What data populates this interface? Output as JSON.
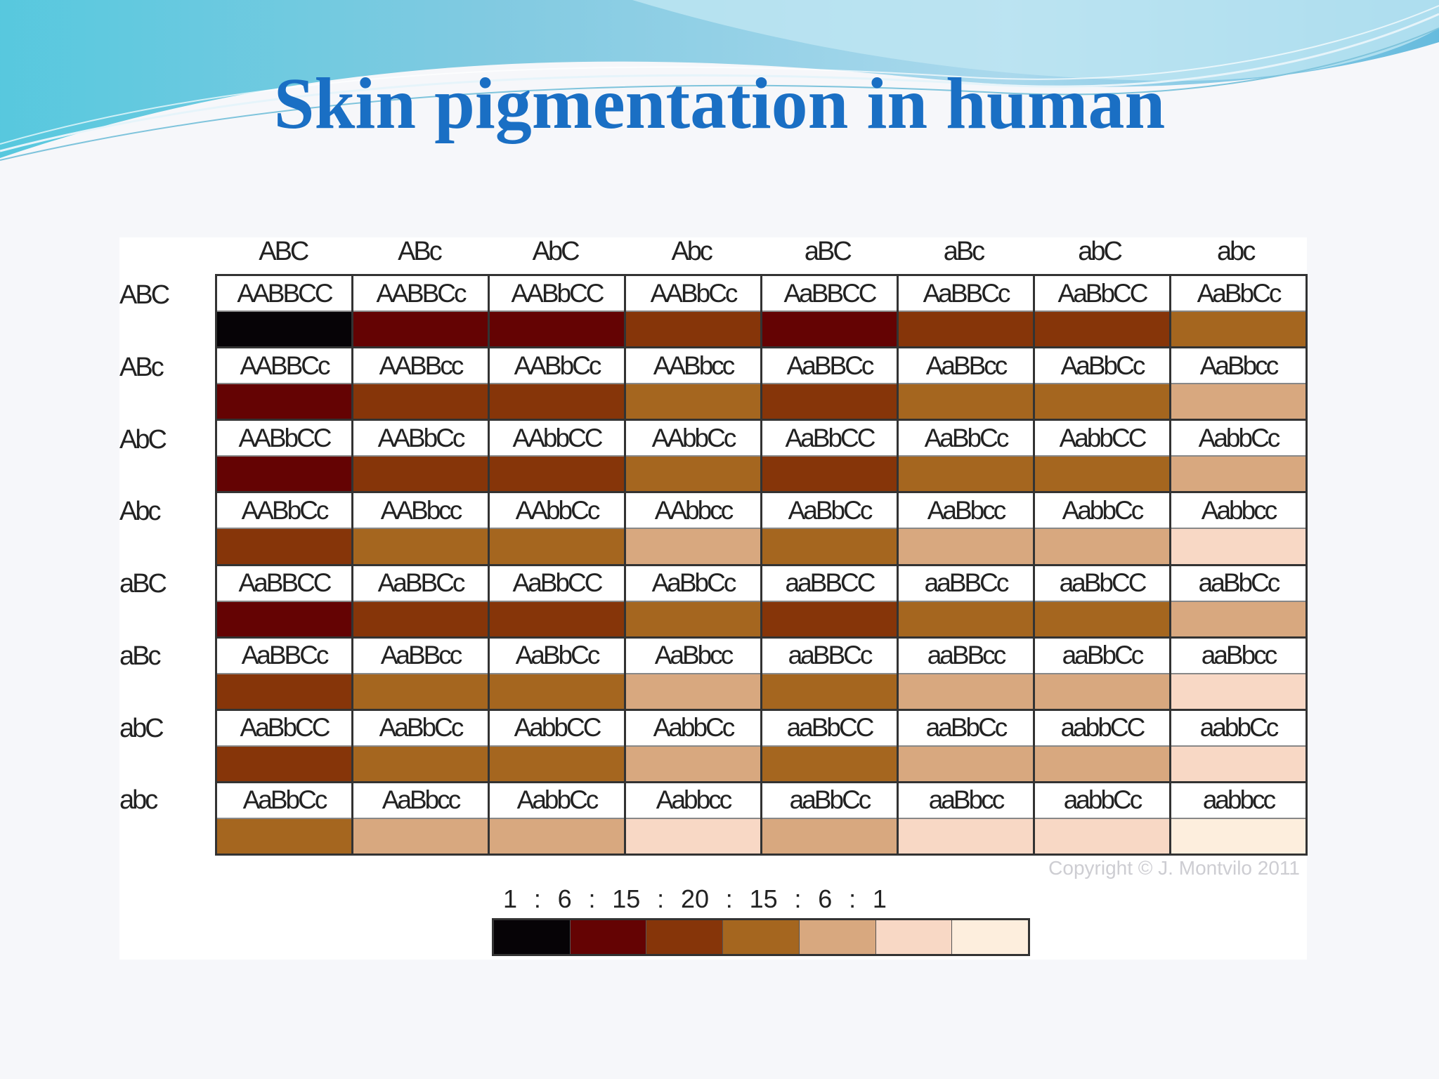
{
  "slide": {
    "title": "Skin pigmentation in human"
  },
  "figure": {
    "column_headers": [
      "ABC",
      "ABc",
      "AbC",
      "Abc",
      "aBC",
      "aBc",
      "abC",
      "abc"
    ],
    "row_headers": [
      "ABC",
      "ABc",
      "AbC",
      "Abc",
      "aBC",
      "aBc",
      "abC",
      "abc"
    ],
    "cells": [
      [
        "AABBCC",
        "AABBCc",
        "AABbCC",
        "AABbCc",
        "AaBBCC",
        "AaBBCc",
        "AaBbCC",
        "AaBbCc"
      ],
      [
        "AABBCc",
        "AABBcc",
        "AABbCc",
        "AABbcc",
        "AaBBCc",
        "AaBBcc",
        "AaBbCc",
        "AaBbcc"
      ],
      [
        "AABbCC",
        "AABbCc",
        "AAbbCC",
        "AAbbCc",
        "AaBbCC",
        "AaBbCc",
        "AabbCC",
        "AabbCc"
      ],
      [
        "AABbCc",
        "AABbcc",
        "AAbbCc",
        "AAbbcc",
        "AaBbCc",
        "AaBbcc",
        "AabbCc",
        "Aabbcc"
      ],
      [
        "AaBBCC",
        "AaBBCc",
        "AaBbCC",
        "AaBbCc",
        "aaBBCC",
        "aaBBCc",
        "aaBbCC",
        "aaBbCc"
      ],
      [
        "AaBBCc",
        "AaBBcc",
        "AaBbCc",
        "AaBbcc",
        "aaBBCc",
        "aaBBcc",
        "aaBbCc",
        "aaBbcc"
      ],
      [
        "AaBbCC",
        "AaBbCc",
        "AabbCC",
        "AabbCc",
        "aaBbCC",
        "aaBbCc",
        "aabbCC",
        "aabbCc"
      ],
      [
        "AaBbCc",
        "AaBbcc",
        "AabbCc",
        "Aabbcc",
        "aaBbCc",
        "aaBbcc",
        "aabbCc",
        "aabbcc"
      ]
    ],
    "copyright": "Copyright © J. Montvilo 2011",
    "ratio": [
      "1",
      ":",
      "6",
      ":",
      "15",
      ":",
      "20",
      ":",
      "15",
      ":",
      "6",
      ":",
      "1"
    ],
    "shade_colors": [
      "#060306",
      "#640303",
      "#863509",
      "#a5661f",
      "#d8a87f",
      "#f8d8c5",
      "#fdeedd"
    ]
  }
}
